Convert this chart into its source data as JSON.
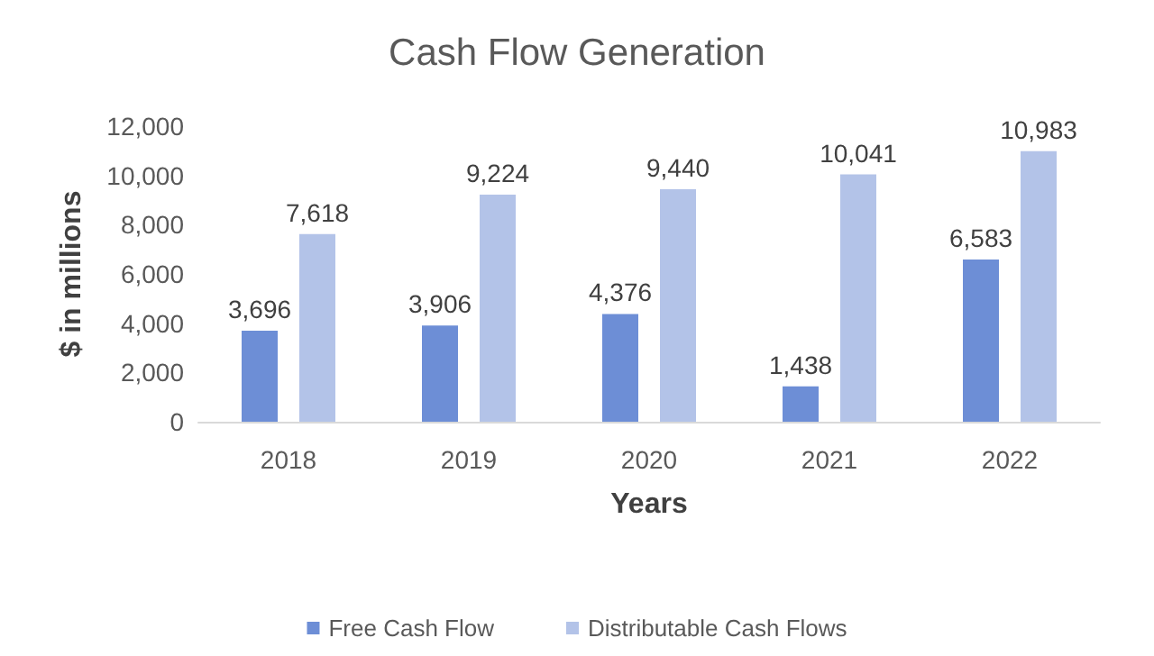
{
  "chart_data": {
    "type": "bar",
    "title": "Cash Flow Generation",
    "xlabel": "Years",
    "ylabel": "$ in millions",
    "categories": [
      "2018",
      "2019",
      "2020",
      "2021",
      "2022"
    ],
    "series": [
      {
        "name": "Free Cash Flow",
        "color": "#6d8ed6",
        "values": [
          3696,
          3906,
          4376,
          1438,
          6583
        ],
        "value_labels": [
          "3,696",
          "3,906",
          "4,376",
          "1,438",
          "6,583"
        ]
      },
      {
        "name": "Distributable Cash Flows",
        "color": "#b3c3e8",
        "values": [
          7618,
          9224,
          9440,
          10041,
          10983
        ],
        "value_labels": [
          "7,618",
          "9,224",
          "9,440",
          "10,041",
          "10,983"
        ]
      }
    ],
    "ylim": [
      0,
      12000
    ],
    "yticks": [
      {
        "value": 0,
        "label": "0"
      },
      {
        "value": 2000,
        "label": "2,000"
      },
      {
        "value": 4000,
        "label": "4,000"
      },
      {
        "value": 6000,
        "label": "6,000"
      },
      {
        "value": 8000,
        "label": "8,000"
      },
      {
        "value": 10000,
        "label": "10,000"
      },
      {
        "value": 12000,
        "label": "12,000"
      }
    ],
    "grid": false,
    "legend": "bottom"
  }
}
